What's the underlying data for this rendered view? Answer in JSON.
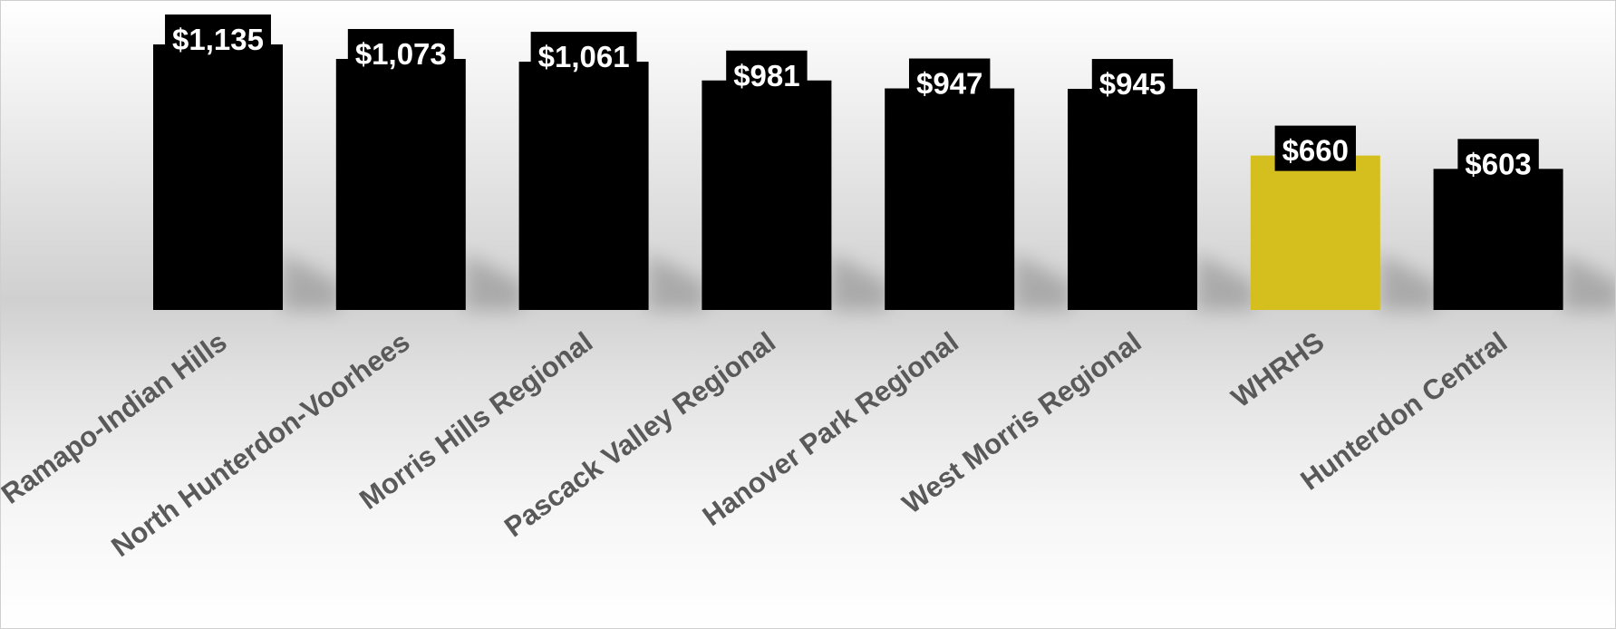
{
  "chart_data": {
    "type": "bar",
    "title": "",
    "xlabel": "",
    "ylabel": "",
    "categories": [
      "Ramapo-Indian Hills",
      "North Hunterdon-Voorhees",
      "Morris Hills Regional",
      "Pascack Valley Regional",
      "Hanover Park Regional",
      "West Morris Regional",
      "WHRHS",
      "Hunterdon Central"
    ],
    "values": [
      1135,
      1073,
      1061,
      981,
      947,
      945,
      660,
      603
    ],
    "value_labels": [
      "$1,135",
      "$1,073",
      "$1,061",
      "$981",
      "$947",
      "$945",
      "$660",
      "$603"
    ],
    "ylim": [
      0,
      1135
    ],
    "grid": false,
    "legend": "none",
    "colors": {
      "default_bar": "#000000",
      "highlight_bar": "#d4bf1f",
      "label_box": "#000000",
      "label_text": "#ffffff",
      "category_text": "#595959"
    },
    "highlight_category": "WHRHS"
  }
}
